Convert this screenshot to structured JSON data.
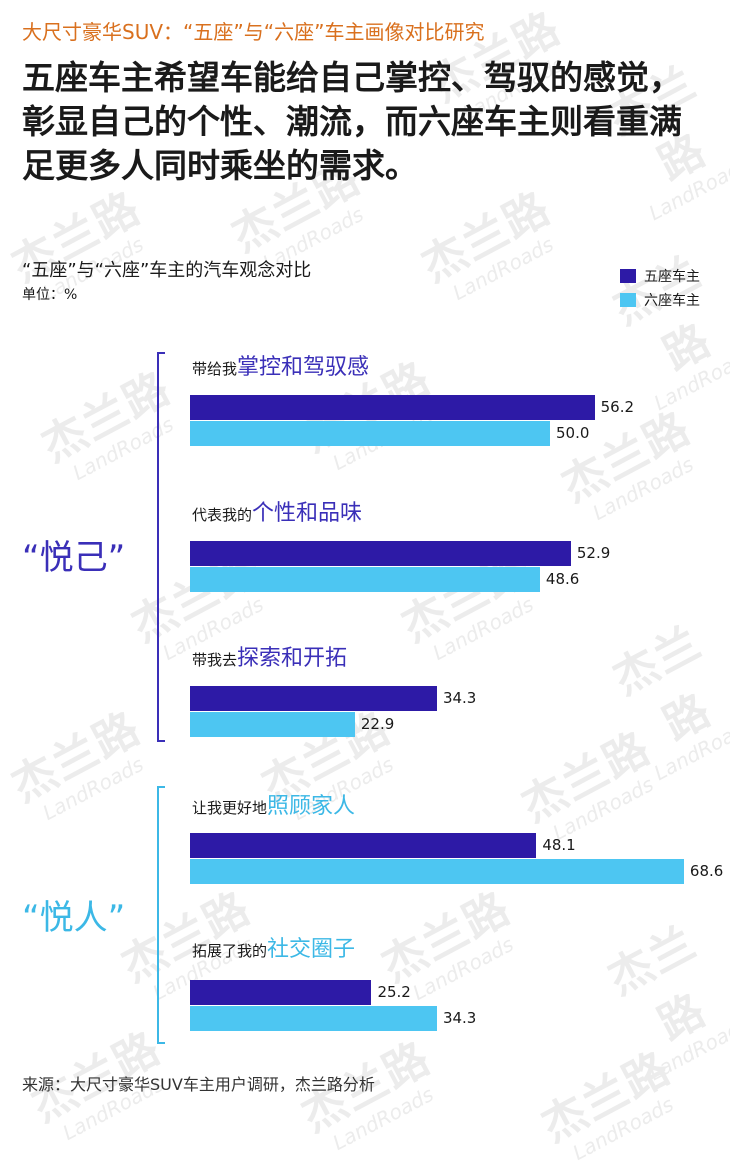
{
  "header": {
    "subtitle": "大尺寸豪华SUV：“五座”与“六座”车主画像对比研究",
    "headline": "五座车主希望车能给自己掌控、驾驭的感觉，彰显自己的个性、潮流，而六座车主则看重满足更多人同时乘坐的需求。"
  },
  "watermark": {
    "cn": "杰兰路",
    "en": "LandRoads"
  },
  "footer": {
    "source": "来源：大尺寸豪华SUV车主用户调研，杰兰路分析"
  },
  "colors": {
    "five_seat": "#2d1aa6",
    "six_seat": "#4dc6f2",
    "group_1": "#3a2fb8",
    "group_2": "#3cb8e6",
    "subtitle": "#d9701e"
  },
  "chart_data": {
    "type": "bar",
    "orientation": "horizontal",
    "title": "“五座”与“六座”车主的汽车观念对比",
    "unit": "单位：%",
    "legend_position": "top-right",
    "series": [
      {
        "name": "五座车主",
        "values": [
          56.2,
          52.9,
          34.3,
          48.1,
          25.2
        ]
      },
      {
        "name": "六座车主",
        "values": [
          50.0,
          48.6,
          22.9,
          68.6,
          34.3
        ]
      }
    ],
    "groups": [
      {
        "label": "“悦己”",
        "items": [
          0,
          1,
          2
        ]
      },
      {
        "label": "“悦人”",
        "items": [
          3,
          4
        ]
      }
    ],
    "categories": [
      {
        "prefix": "带给我",
        "highlight": "掌控和驾驭感"
      },
      {
        "prefix": "代表我的",
        "highlight": "个性和品味"
      },
      {
        "prefix": "带我去",
        "highlight": "探索和开拓"
      },
      {
        "prefix": "让我更好地",
        "highlight": "照顾家人"
      },
      {
        "prefix": "拓展了我的",
        "highlight": "社交圈子"
      }
    ]
  }
}
